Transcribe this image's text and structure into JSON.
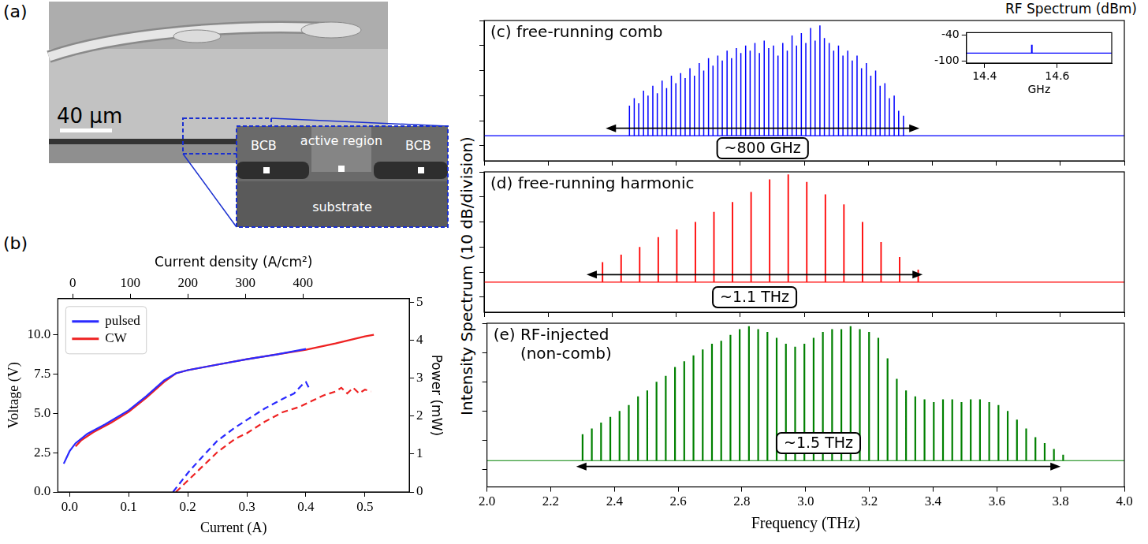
{
  "figure": {
    "ylabel": "Intensity Spectrum (10 dB/division)"
  },
  "image": {
    "panel": "(a)",
    "scale_bar": "40 µm",
    "labels": [
      "BCB",
      "active region",
      "BCB",
      "substrate"
    ]
  },
  "chart_data": [
    {
      "panel": "(b)",
      "type": "line",
      "xlabel": "Current (A)",
      "ylabel": "Voltage (V)",
      "y2label": "Power (mW)",
      "x2label": "Current density (A/cm²)",
      "xlim": [
        -0.02,
        0.575
      ],
      "xticks": [
        {
          "value": 0,
          "label": "0.0"
        },
        0.1,
        0.2,
        0.3,
        0.4,
        0.5
      ],
      "ylim": [
        0,
        12.3
      ],
      "yticks": [
        {
          "value": 0,
          "label": "0.0"
        },
        2.5,
        {
          "value": 5,
          "label": "5.0"
        },
        7.5,
        {
          "value": 10,
          "label": "10.0"
        }
      ],
      "y2lim": [
        0,
        5.1
      ],
      "y2ticks": [
        0,
        1,
        2,
        3,
        4,
        5
      ],
      "x2lim": [
        -26,
        585
      ],
      "x2ticks": [
        0,
        100,
        200,
        300,
        400
      ],
      "grid": false,
      "legend": "upper left",
      "series": [
        {
          "name": "pulsed",
          "color": "#2a2aff",
          "line_style": "solid",
          "x": [
            -0.01,
            0,
            0.01,
            0.03,
            0.06,
            0.1,
            0.13,
            0.16,
            0.18,
            0.2,
            0.25,
            0.3,
            0.35,
            0.4
          ],
          "values": [
            1.8,
            2.6,
            3.1,
            3.7,
            4.3,
            5.2,
            6.1,
            7.1,
            7.55,
            7.75,
            8.1,
            8.45,
            8.75,
            9.1
          ]
        },
        {
          "name": "CW",
          "color": "#ee2222",
          "line_style": "solid",
          "x": [
            0.01,
            0.02,
            0.04,
            0.07,
            0.1,
            0.13,
            0.16,
            0.18,
            0.2,
            0.25,
            0.3,
            0.35,
            0.4,
            0.45,
            0.5,
            0.515
          ],
          "values": [
            2.9,
            3.3,
            3.8,
            4.4,
            5.1,
            6.0,
            7.0,
            7.55,
            7.75,
            8.1,
            8.45,
            8.75,
            9.05,
            9.45,
            9.9,
            10.0
          ]
        },
        {
          "color": "#2a2aff",
          "line_style": "dashed",
          "axis": "y2",
          "x": [
            0.175,
            0.2,
            0.22,
            0.25,
            0.28,
            0.3,
            0.33,
            0.36,
            0.38,
            0.395,
            0.4,
            0.405
          ],
          "values": [
            0,
            0.5,
            0.85,
            1.35,
            1.7,
            1.9,
            2.2,
            2.45,
            2.6,
            2.85,
            2.9,
            2.75
          ]
        },
        {
          "color": "#ee2222",
          "line_style": "dashed",
          "axis": "y2",
          "x": [
            0.18,
            0.2,
            0.22,
            0.25,
            0.28,
            0.3,
            0.33,
            0.36,
            0.39,
            0.41,
            0.43,
            0.45,
            0.46,
            0.47,
            0.48,
            0.49,
            0.5,
            0.51
          ],
          "values": [
            0,
            0.3,
            0.6,
            1.05,
            1.4,
            1.55,
            1.85,
            2.1,
            2.25,
            2.4,
            2.55,
            2.65,
            2.75,
            2.6,
            2.75,
            2.6,
            2.7,
            2.65
          ]
        }
      ]
    },
    {
      "panel": "(c)",
      "type": "stem",
      "title": "free-running comb",
      "xlim": [
        2,
        4
      ],
      "xticks": [
        {
          "value": 2,
          "label": "2.0"
        },
        2.2,
        2.4,
        2.6,
        2.8,
        {
          "value": 3,
          "label": "3.0"
        },
        3.2,
        3.4,
        3.6,
        3.8,
        {
          "value": 4,
          "label": "4.0"
        }
      ],
      "ylim": [
        -56,
        0
      ],
      "yticks": [
        -50,
        -40,
        -30,
        -20,
        -10,
        0
      ],
      "grid": false,
      "tick_labels": false,
      "noise_floor": -46,
      "series": [
        {
          "color": "#0000ff",
          "x": [
            2.454,
            2.469,
            2.483,
            2.498,
            2.512,
            2.527,
            2.541,
            2.556,
            2.57,
            2.585,
            2.599,
            2.614,
            2.628,
            2.643,
            2.657,
            2.672,
            2.686,
            2.701,
            2.715,
            2.73,
            2.744,
            2.759,
            2.773,
            2.788,
            2.802,
            2.817,
            2.831,
            2.846,
            2.86,
            2.875,
            2.889,
            2.904,
            2.918,
            2.933,
            2.947,
            2.962,
            2.976,
            2.991,
            3.005,
            3.02,
            3.034,
            3.049,
            3.063,
            3.078,
            3.092,
            3.107,
            3.121,
            3.136,
            3.15,
            3.165,
            3.179,
            3.194,
            3.208,
            3.223,
            3.237,
            3.252,
            3.266,
            3.281,
            3.295,
            3.31
          ],
          "values": [
            -34,
            -31,
            -33,
            -28,
            -30,
            -26,
            -29,
            -24,
            -27,
            -22,
            -25,
            -21,
            -23,
            -19,
            -22,
            -17,
            -20,
            -15,
            -18,
            -14,
            -16,
            -12,
            -15,
            -11,
            -13,
            -10,
            -12,
            -9,
            -13,
            -8,
            -11,
            -10,
            -14,
            -9,
            -12,
            -6,
            -10,
            -5,
            -9,
            -3,
            -8,
            -2,
            -7,
            -9,
            -12,
            -10,
            -14,
            -12,
            -16,
            -14,
            -19,
            -17,
            -22,
            -20,
            -26,
            -25,
            -31,
            -30,
            -36,
            -38
          ]
        }
      ],
      "annotation": {
        "text": "~800 GHz",
        "x1": 2.38,
        "x2": 3.36,
        "y": -43,
        "label_y": -51
      },
      "inset": {
        "type": "stem",
        "title": "RF Spectrum (dBm)",
        "xlabel": "GHz",
        "xlim": [
          14.35,
          14.75
        ],
        "xticks": [
          14.4,
          14.6
        ],
        "ylim": [
          -105,
          -35
        ],
        "yticks": [
          -100,
          -40
        ],
        "grid": false,
        "noise_floor": -82,
        "series": [
          {
            "color": "#0000ff",
            "x": [
              14.53
            ],
            "values": [
              -63
            ]
          }
        ]
      }
    },
    {
      "panel": "(d)",
      "type": "stem",
      "title": "free-running harmonic",
      "xlim": [
        2,
        4
      ],
      "xticks": [
        {
          "value": 2,
          "label": "2.0"
        },
        2.2,
        2.4,
        2.6,
        2.8,
        {
          "value": 3,
          "label": "3.0"
        },
        3.2,
        3.4,
        3.6,
        3.8,
        {
          "value": 4,
          "label": "4.0"
        }
      ],
      "ylim": [
        -56,
        0
      ],
      "yticks": [
        -50,
        -40,
        -30,
        -20,
        -10,
        0
      ],
      "grid": false,
      "tick_labels": false,
      "noise_floor": -44,
      "series": [
        {
          "color": "#ff0000",
          "x": [
            2.37,
            2.428,
            2.486,
            2.544,
            2.602,
            2.66,
            2.718,
            2.776,
            2.834,
            2.892,
            2.95,
            3.008,
            3.066,
            3.124,
            3.182,
            3.24,
            3.298,
            3.356
          ],
          "values": [
            -36,
            -33,
            -30,
            -26,
            -23,
            -20,
            -16,
            -12,
            -8,
            -3,
            -1,
            -4,
            -9,
            -13,
            -20,
            -28,
            -34,
            -39
          ]
        }
      ],
      "annotation": {
        "text": "~1.1 THz",
        "x1": 2.32,
        "x2": 3.37,
        "y": -41,
        "label_y": -50
      }
    },
    {
      "panel": "(e)",
      "type": "stem",
      "title": [
        "RF-injected",
        "(non-comb)"
      ],
      "xlabel": "Frequency (THz)",
      "xlim": [
        2,
        4
      ],
      "xticks": [
        {
          "value": 2,
          "label": "2.0"
        },
        2.2,
        2.4,
        2.6,
        2.8,
        {
          "value": 3,
          "label": "3.0"
        },
        3.2,
        3.4,
        3.6,
        3.8,
        {
          "value": 4,
          "label": "4.0"
        }
      ],
      "ylim": [
        -56,
        0
      ],
      "yticks": [
        -50,
        -40,
        -30,
        -20,
        -10,
        0
      ],
      "grid": false,
      "tick_labels": "x",
      "noise_floor": -47,
      "series": [
        {
          "color": "#008000",
          "x": [
            2.3,
            2.329,
            2.358,
            2.387,
            2.416,
            2.445,
            2.474,
            2.503,
            2.532,
            2.561,
            2.59,
            2.619,
            2.648,
            2.677,
            2.706,
            2.735,
            2.764,
            2.793,
            2.822,
            2.851,
            2.88,
            2.909,
            2.938,
            2.967,
            2.996,
            3.025,
            3.054,
            3.083,
            3.112,
            3.141,
            3.17,
            3.199,
            3.228,
            3.257,
            3.286,
            3.315,
            3.344,
            3.373,
            3.402,
            3.431,
            3.46,
            3.489,
            3.518,
            3.547,
            3.576,
            3.605,
            3.634,
            3.663,
            3.692,
            3.721,
            3.75,
            3.779,
            3.808
          ],
          "values": [
            -38,
            -36,
            -34,
            -32,
            -30,
            -28,
            -25,
            -23,
            -20,
            -18,
            -15,
            -13,
            -11,
            -9,
            -7,
            -6,
            -4,
            -2,
            -1,
            -2,
            -3,
            -5,
            -7,
            -8,
            -7,
            -5,
            -3,
            -2,
            -2,
            -1,
            -2,
            -3,
            -5,
            -12,
            -19,
            -23,
            -25,
            -26,
            -27,
            -26,
            -26,
            -27,
            -26,
            -26,
            -27,
            -28,
            -30,
            -33,
            -36,
            -39,
            -41,
            -43,
            -45
          ]
        }
      ],
      "annotation": {
        "text": "~1.5 THz",
        "x1": 2.28,
        "x2": 3.8,
        "y": -49,
        "label_y": -41
      }
    }
  ]
}
